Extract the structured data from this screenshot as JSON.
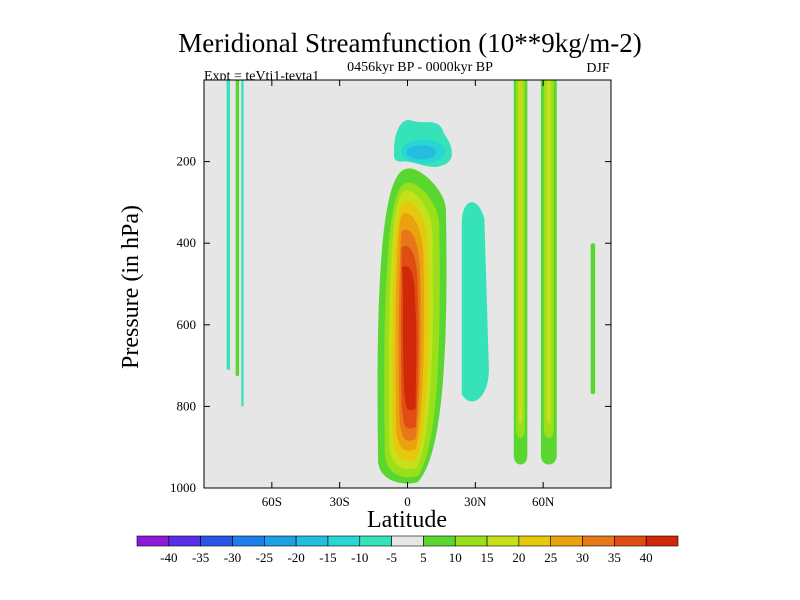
{
  "chart_data": {
    "type": "contour",
    "title": "Meridional Streamfunction (10**9kg/m-2)",
    "subtitle_left": "Expt = teVti1-tevta1",
    "subtitle_center": "0456kyr BP - 0000kyr BP",
    "subtitle_right": "DJF",
    "xlabel": "Latitude",
    "ylabel": "Pressure (in hPa)",
    "xlim": [
      -90,
      90
    ],
    "ylim": [
      1000,
      0
    ],
    "y_reversed": true,
    "xticks": [
      {
        "value": -60,
        "label": "60S"
      },
      {
        "value": -30,
        "label": "30S"
      },
      {
        "value": 0,
        "label": "0"
      },
      {
        "value": 30,
        "label": "30N"
      },
      {
        "value": 60,
        "label": "60N"
      }
    ],
    "yticks": [
      {
        "value": 200,
        "label": "200"
      },
      {
        "value": 400,
        "label": "400"
      },
      {
        "value": 600,
        "label": "600"
      },
      {
        "value": 800,
        "label": "800"
      },
      {
        "value": 1000,
        "label": "1000"
      }
    ],
    "background_fill": "#e6e6e6",
    "colorbar": {
      "levels": [
        "-40",
        "-35",
        "-30",
        "-25",
        "-20",
        "-15",
        "-10",
        "-5",
        "5",
        "10",
        "15",
        "20",
        "25",
        "30",
        "35",
        "40"
      ],
      "colors": [
        "#8c1ad6",
        "#5a2ee6",
        "#2b55e8",
        "#1f7ee8",
        "#1ea0e4",
        "#24bde0",
        "#28d6d2",
        "#36e2b8",
        "#e6e6e6",
        "#5ad630",
        "#9ae01a",
        "#c6e01a",
        "#e6c80f",
        "#eba20f",
        "#e8761a",
        "#e04d12",
        "#d02808"
      ]
    },
    "features": [
      {
        "name": "polar-streak-1",
        "lat_min": -80,
        "lat_max": -78.5,
        "p_top": 0,
        "p_bot": 710,
        "level": "-5"
      },
      {
        "name": "polar-streak-2",
        "lat_min": -76,
        "lat_max": -74.5,
        "p_top": 0,
        "p_bot": 725,
        "level": "5"
      },
      {
        "name": "polar-streak-3",
        "lat_min": -73.5,
        "lat_max": -72.5,
        "p_top": 0,
        "p_bot": 800,
        "level": "-5"
      },
      {
        "name": "upper-negative-cell",
        "lat_center": 7,
        "p_center": 170,
        "level_min": "-15"
      },
      {
        "name": "tropical-positive-cell",
        "lat_center": 0,
        "p_center": 600,
        "level_max": "40"
      },
      {
        "name": "subtropical-negative-column",
        "lat_min": 24,
        "lat_max": 36,
        "p_top": 290,
        "p_bot": 810,
        "level": "-5"
      },
      {
        "name": "midlatitude-positive-column-1",
        "lat_min": 47,
        "lat_max": 53,
        "p_top": 0,
        "p_bot": 950,
        "level_max": "20"
      },
      {
        "name": "midlatitude-positive-column-2",
        "lat_min": 59,
        "lat_max": 66,
        "p_top": 0,
        "p_bot": 950,
        "level_max": "15"
      },
      {
        "name": "polar-positive-streak",
        "lat_min": 81,
        "lat_max": 83,
        "p_top": 400,
        "p_bot": 770,
        "level": "5"
      }
    ]
  }
}
